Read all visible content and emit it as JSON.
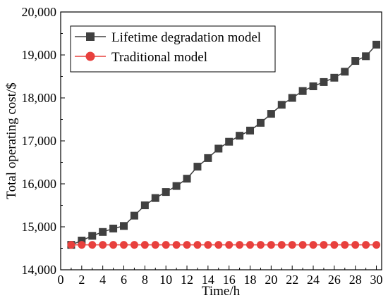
{
  "chart_data": {
    "type": "line",
    "title": "",
    "xlabel": "Time/h",
    "ylabel": "Total operating cost/$",
    "xlim": [
      0,
      30.5
    ],
    "ylim": [
      14000,
      20000
    ],
    "xticks": [
      0,
      2,
      4,
      6,
      8,
      10,
      12,
      14,
      16,
      18,
      20,
      22,
      24,
      26,
      28,
      30
    ],
    "xtick_labels": [
      "0",
      "2",
      "4",
      "6",
      "8",
      "10",
      "12",
      "14",
      "16",
      "18",
      "20",
      "22",
      "24",
      "26",
      "28",
      "30"
    ],
    "yticks": [
      14000,
      15000,
      16000,
      17000,
      18000,
      19000,
      20000
    ],
    "ytick_labels": [
      "14,000",
      "15,000",
      "16,000",
      "17,000",
      "18,000",
      "19,000",
      "20,000"
    ],
    "grid": false,
    "legend_position": "top-left",
    "x": [
      1,
      2,
      3,
      4,
      5,
      6,
      7,
      8,
      9,
      10,
      11,
      12,
      13,
      14,
      15,
      16,
      17,
      18,
      19,
      20,
      21,
      22,
      23,
      24,
      25,
      26,
      27,
      28,
      29,
      30
    ],
    "series": [
      {
        "name": "Lifetime degradation model",
        "color": "#404040",
        "marker": "square",
        "values": [
          14580,
          14680,
          14790,
          14880,
          14960,
          15020,
          15260,
          15500,
          15670,
          15810,
          15950,
          16120,
          16400,
          16600,
          16820,
          16980,
          17120,
          17240,
          17420,
          17630,
          17840,
          18000,
          18160,
          18270,
          18370,
          18470,
          18610,
          18860,
          18970,
          19240
        ]
      },
      {
        "name": "Traditional model",
        "color": "#e8403d",
        "marker": "circle",
        "values": [
          14580,
          14580,
          14580,
          14580,
          14580,
          14580,
          14580,
          14580,
          14580,
          14580,
          14580,
          14580,
          14580,
          14580,
          14580,
          14580,
          14580,
          14580,
          14580,
          14580,
          14580,
          14580,
          14580,
          14580,
          14580,
          14580,
          14580,
          14580,
          14580,
          14580
        ]
      }
    ]
  }
}
